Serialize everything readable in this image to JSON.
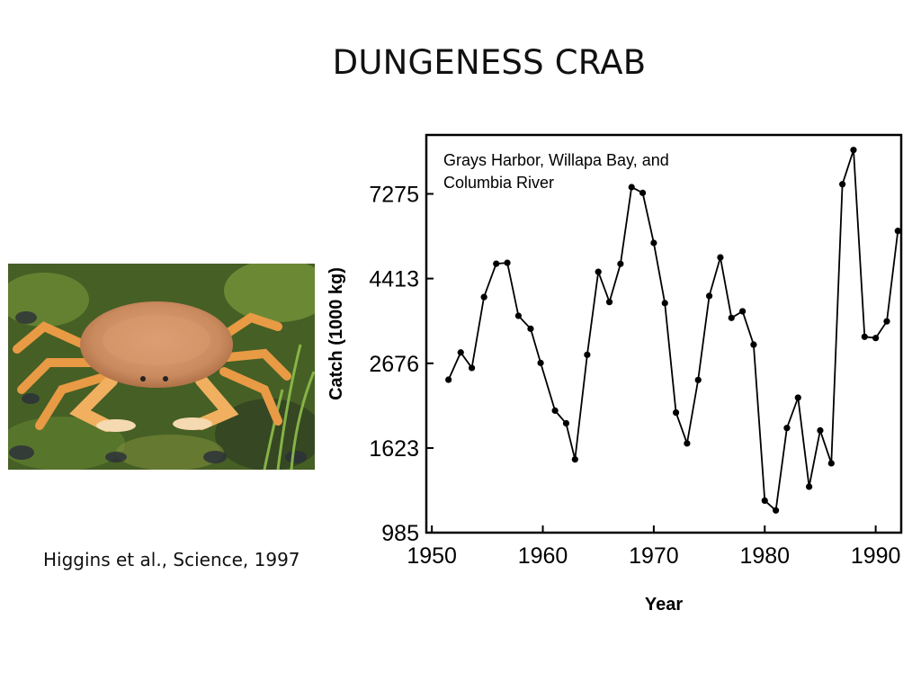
{
  "slide": {
    "title": "DUNGENESS CRAB",
    "citation": "Higgins et al., Science, 1997"
  },
  "photo": {
    "subject": "dungeness-crab",
    "colors": {
      "shell": "#c98a5e",
      "legs": "#e89a44",
      "background": "#4f6a2a"
    }
  },
  "chart_data": {
    "type": "line",
    "title": "",
    "annotation_lines": [
      "Grays Harbor, Willapa Bay, and",
      "Columbia River"
    ],
    "xlabel": "Year",
    "ylabel": "Catch (1000 kg)",
    "y_scale": "log",
    "xlim": [
      1949.5,
      1992.3
    ],
    "ylim": [
      985,
      10300
    ],
    "x_ticks": [
      1950,
      1960,
      1970,
      1980,
      1990
    ],
    "y_ticks": [
      985,
      1623,
      2676,
      4413,
      7275
    ],
    "grid": false,
    "legend": "none",
    "line_color": "#000000",
    "series": [
      {
        "x": [
          1951.5,
          1952.6,
          1953.6,
          1954.7,
          1955.8,
          1956.8,
          1957.8,
          1958.9,
          1959.8,
          1961.1,
          1962.1,
          1962.9,
          1964.0,
          1965.0,
          1966.0,
          1967.0,
          1968.0,
          1969.0,
          1970.0,
          1971.0,
          1972.0,
          1973.0,
          1974.0,
          1975.0,
          1976.0,
          1977.0,
          1978.0,
          1979.0,
          1980.0,
          1981.0,
          1982.0,
          1983.0,
          1984.0,
          1985.0,
          1986.0,
          1987.0,
          1988.0,
          1989.0,
          1990.0,
          1991.0,
          1992.0
        ],
        "y": [
          2429,
          2853,
          2604,
          3957,
          4817,
          4843,
          3542,
          3282,
          2682,
          2024,
          1878,
          1518,
          2814,
          4592,
          3843,
          4813,
          7569,
          7318,
          5446,
          3818,
          2001,
          1668,
          2425,
          3983,
          5000,
          3499,
          3638,
          2988,
          1190,
          1123,
          1827,
          2185,
          1292,
          1801,
          1483,
          7700,
          9425,
          3130,
          3107,
          3428,
          5846
        ]
      }
    ]
  }
}
